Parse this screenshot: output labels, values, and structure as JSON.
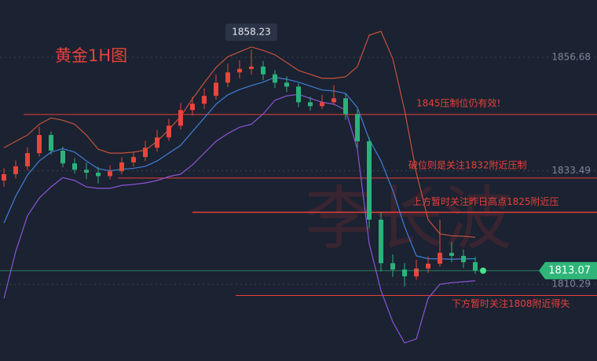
{
  "chart_data": {
    "type": "candlestick",
    "title": "黄金1H图",
    "watermark": "李长波",
    "ylim": [
      1794.6,
      1868.4
    ],
    "yticks": [
      1856.68,
      1833.49,
      1810.29
    ],
    "up_color": "#e8453c",
    "down_color": "#2bb27b",
    "ohlc": [
      [
        1831.5,
        1834.0,
        1830.2,
        1832.8
      ],
      [
        1832.8,
        1835.6,
        1831.9,
        1834.4
      ],
      [
        1834.4,
        1838.3,
        1833.6,
        1837.1
      ],
      [
        1837.1,
        1842.5,
        1836.4,
        1840.8
      ],
      [
        1840.8,
        1841.5,
        1836.8,
        1837.6
      ],
      [
        1837.6,
        1838.4,
        1834.2,
        1835.0
      ],
      [
        1835.0,
        1836.1,
        1832.9,
        1833.7
      ],
      [
        1833.7,
        1835.2,
        1831.8,
        1833.1
      ],
      [
        1833.1,
        1834.3,
        1830.9,
        1832.4
      ],
      [
        1832.4,
        1834.6,
        1831.7,
        1833.4
      ],
      [
        1833.4,
        1836.3,
        1832.8,
        1835.2
      ],
      [
        1835.2,
        1837.4,
        1834.3,
        1836.3
      ],
      [
        1836.3,
        1839.6,
        1835.5,
        1838.2
      ],
      [
        1838.2,
        1841.8,
        1837.4,
        1840.3
      ],
      [
        1840.3,
        1844.1,
        1839.6,
        1842.7
      ],
      [
        1842.7,
        1847.3,
        1841.9,
        1845.9
      ],
      [
        1845.9,
        1848.6,
        1844.8,
        1847.2
      ],
      [
        1847.2,
        1850.3,
        1846.1,
        1848.8
      ],
      [
        1848.8,
        1853.2,
        1848.0,
        1851.5
      ],
      [
        1851.5,
        1855.4,
        1850.6,
        1853.6
      ],
      [
        1853.6,
        1856.1,
        1852.4,
        1854.3
      ],
      [
        1854.3,
        1858.23,
        1853.1,
        1854.8
      ],
      [
        1854.8,
        1855.9,
        1852.0,
        1853.2
      ],
      [
        1853.2,
        1854.1,
        1850.4,
        1851.5
      ],
      [
        1851.5,
        1852.8,
        1849.6,
        1850.7
      ],
      [
        1850.7,
        1851.4,
        1846.5,
        1847.5
      ],
      [
        1847.5,
        1848.6,
        1845.8,
        1846.7
      ],
      [
        1846.7,
        1849.0,
        1846.1,
        1847.5
      ],
      [
        1847.5,
        1851.0,
        1846.9,
        1848.3
      ],
      [
        1848.3,
        1849.2,
        1843.9,
        1845.1
      ],
      [
        1845.1,
        1846.0,
        1838.2,
        1839.5
      ],
      [
        1839.5,
        1840.3,
        1821.8,
        1823.5
      ],
      [
        1823.5,
        1825.0,
        1812.9,
        1814.6
      ],
      [
        1814.6,
        1816.4,
        1811.8,
        1813.3
      ],
      [
        1813.3,
        1814.6,
        1809.8,
        1811.9
      ],
      [
        1811.9,
        1815.3,
        1811.2,
        1813.5
      ],
      [
        1813.5,
        1816.0,
        1812.6,
        1814.5
      ],
      [
        1814.5,
        1823.5,
        1813.9,
        1816.7
      ],
      [
        1816.7,
        1818.9,
        1814.8,
        1816.1
      ],
      [
        1816.1,
        1817.4,
        1813.6,
        1814.8
      ],
      [
        1814.8,
        1815.9,
        1812.4,
        1813.07
      ]
    ],
    "bands": [
      {
        "color": "#c4533d",
        "values": [
          1838.2,
          1839.5,
          1840.8,
          1843.0,
          1844.3,
          1843.8,
          1843.0,
          1840.8,
          1837.9,
          1837.1,
          1837.1,
          1837.3,
          1837.7,
          1839.5,
          1841.9,
          1844.6,
          1848.2,
          1851.5,
          1854.6,
          1856.8,
          1857.8,
          1858.8,
          1858.1,
          1857.2,
          1855.6,
          1854.0,
          1853.2,
          1852.4,
          1852.4,
          1852.7,
          1854.8,
          1861.2,
          1862.0,
          1856.4,
          1845.9,
          1833.1,
          1823.5,
          1820.6,
          1820.2,
          1820.1,
          1819.9
        ]
      },
      {
        "color": "#3f7fd9",
        "values": [
          1822.8,
          1828.3,
          1832.6,
          1835.5,
          1837.3,
          1838.0,
          1837.3,
          1835.5,
          1833.9,
          1833.5,
          1833.8,
          1834.0,
          1834.4,
          1835.5,
          1837.1,
          1838.7,
          1841.5,
          1844.3,
          1847.1,
          1849.0,
          1850.1,
          1850.9,
          1851.6,
          1852.6,
          1852.2,
          1851.6,
          1850.8,
          1850.0,
          1849.8,
          1849.3,
          1846.4,
          1839.9,
          1835.5,
          1829.5,
          1822.1,
          1816.1,
          1815.5,
          1815.5,
          1815.4,
          1815.5,
          1815.5
        ]
      },
      {
        "color": "#8a55d6",
        "values": [
          1807.4,
          1817.0,
          1824.3,
          1827.9,
          1830.2,
          1832.1,
          1831.5,
          1830.2,
          1829.9,
          1829.9,
          1830.5,
          1830.7,
          1831.0,
          1831.5,
          1832.3,
          1832.8,
          1834.7,
          1837.1,
          1839.5,
          1841.1,
          1842.4,
          1843.0,
          1845.1,
          1847.9,
          1848.8,
          1849.1,
          1848.3,
          1847.5,
          1847.1,
          1845.9,
          1837.9,
          1818.6,
          1809.0,
          1802.6,
          1798.3,
          1799.1,
          1807.4,
          1810.3,
          1810.6,
          1810.8,
          1811.0
        ]
      }
    ],
    "levels": [
      {
        "value": 1845,
        "label": "1845压制位仍有效!"
      },
      {
        "value": 1832,
        "label": "破位则是关注1832附近压制"
      },
      {
        "value": 1825,
        "label": "上方暂时关注昨日高点1825附近压"
      },
      {
        "value": 1808,
        "label": "下方暂时关注1808附近得失"
      }
    ],
    "level_color": "#e8403a",
    "grid": true
  }
}
